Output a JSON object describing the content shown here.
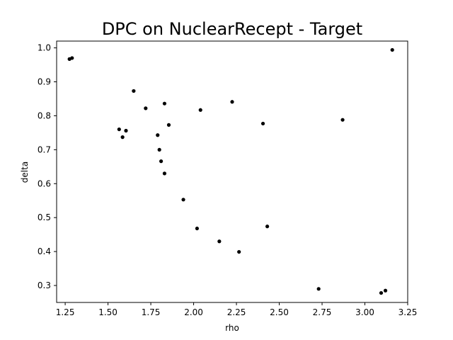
{
  "chart_data": {
    "type": "scatter",
    "title": "DPC on NuclearRecept - Target",
    "xlabel": "rho",
    "ylabel": "delta",
    "xlim": [
      1.2,
      3.25
    ],
    "ylim": [
      0.25,
      1.02
    ],
    "xticks": [
      "1.25",
      "1.50",
      "1.75",
      "2.00",
      "2.25",
      "2.50",
      "2.75",
      "3.00",
      "3.25"
    ],
    "yticks": [
      "0.3",
      "0.4",
      "0.5",
      "0.6",
      "0.7",
      "0.8",
      "0.9",
      "1.0"
    ],
    "grid": false,
    "marker_color": "#000000",
    "points": [
      {
        "x": 1.275,
        "y": 0.967
      },
      {
        "x": 1.29,
        "y": 0.97
      },
      {
        "x": 1.565,
        "y": 0.76
      },
      {
        "x": 1.585,
        "y": 0.737
      },
      {
        "x": 1.605,
        "y": 0.756
      },
      {
        "x": 1.65,
        "y": 0.873
      },
      {
        "x": 1.72,
        "y": 0.822
      },
      {
        "x": 1.79,
        "y": 0.743
      },
      {
        "x": 1.8,
        "y": 0.7
      },
      {
        "x": 1.81,
        "y": 0.666
      },
      {
        "x": 1.83,
        "y": 0.836
      },
      {
        "x": 1.83,
        "y": 0.63
      },
      {
        "x": 1.855,
        "y": 0.773
      },
      {
        "x": 1.94,
        "y": 0.553
      },
      {
        "x": 2.02,
        "y": 0.468
      },
      {
        "x": 2.04,
        "y": 0.817
      },
      {
        "x": 2.15,
        "y": 0.43
      },
      {
        "x": 2.225,
        "y": 0.841
      },
      {
        "x": 2.265,
        "y": 0.399
      },
      {
        "x": 2.405,
        "y": 0.777
      },
      {
        "x": 2.43,
        "y": 0.474
      },
      {
        "x": 2.73,
        "y": 0.29
      },
      {
        "x": 2.87,
        "y": 0.788
      },
      {
        "x": 3.095,
        "y": 0.278
      },
      {
        "x": 3.12,
        "y": 0.285
      },
      {
        "x": 3.16,
        "y": 0.994
      }
    ]
  }
}
